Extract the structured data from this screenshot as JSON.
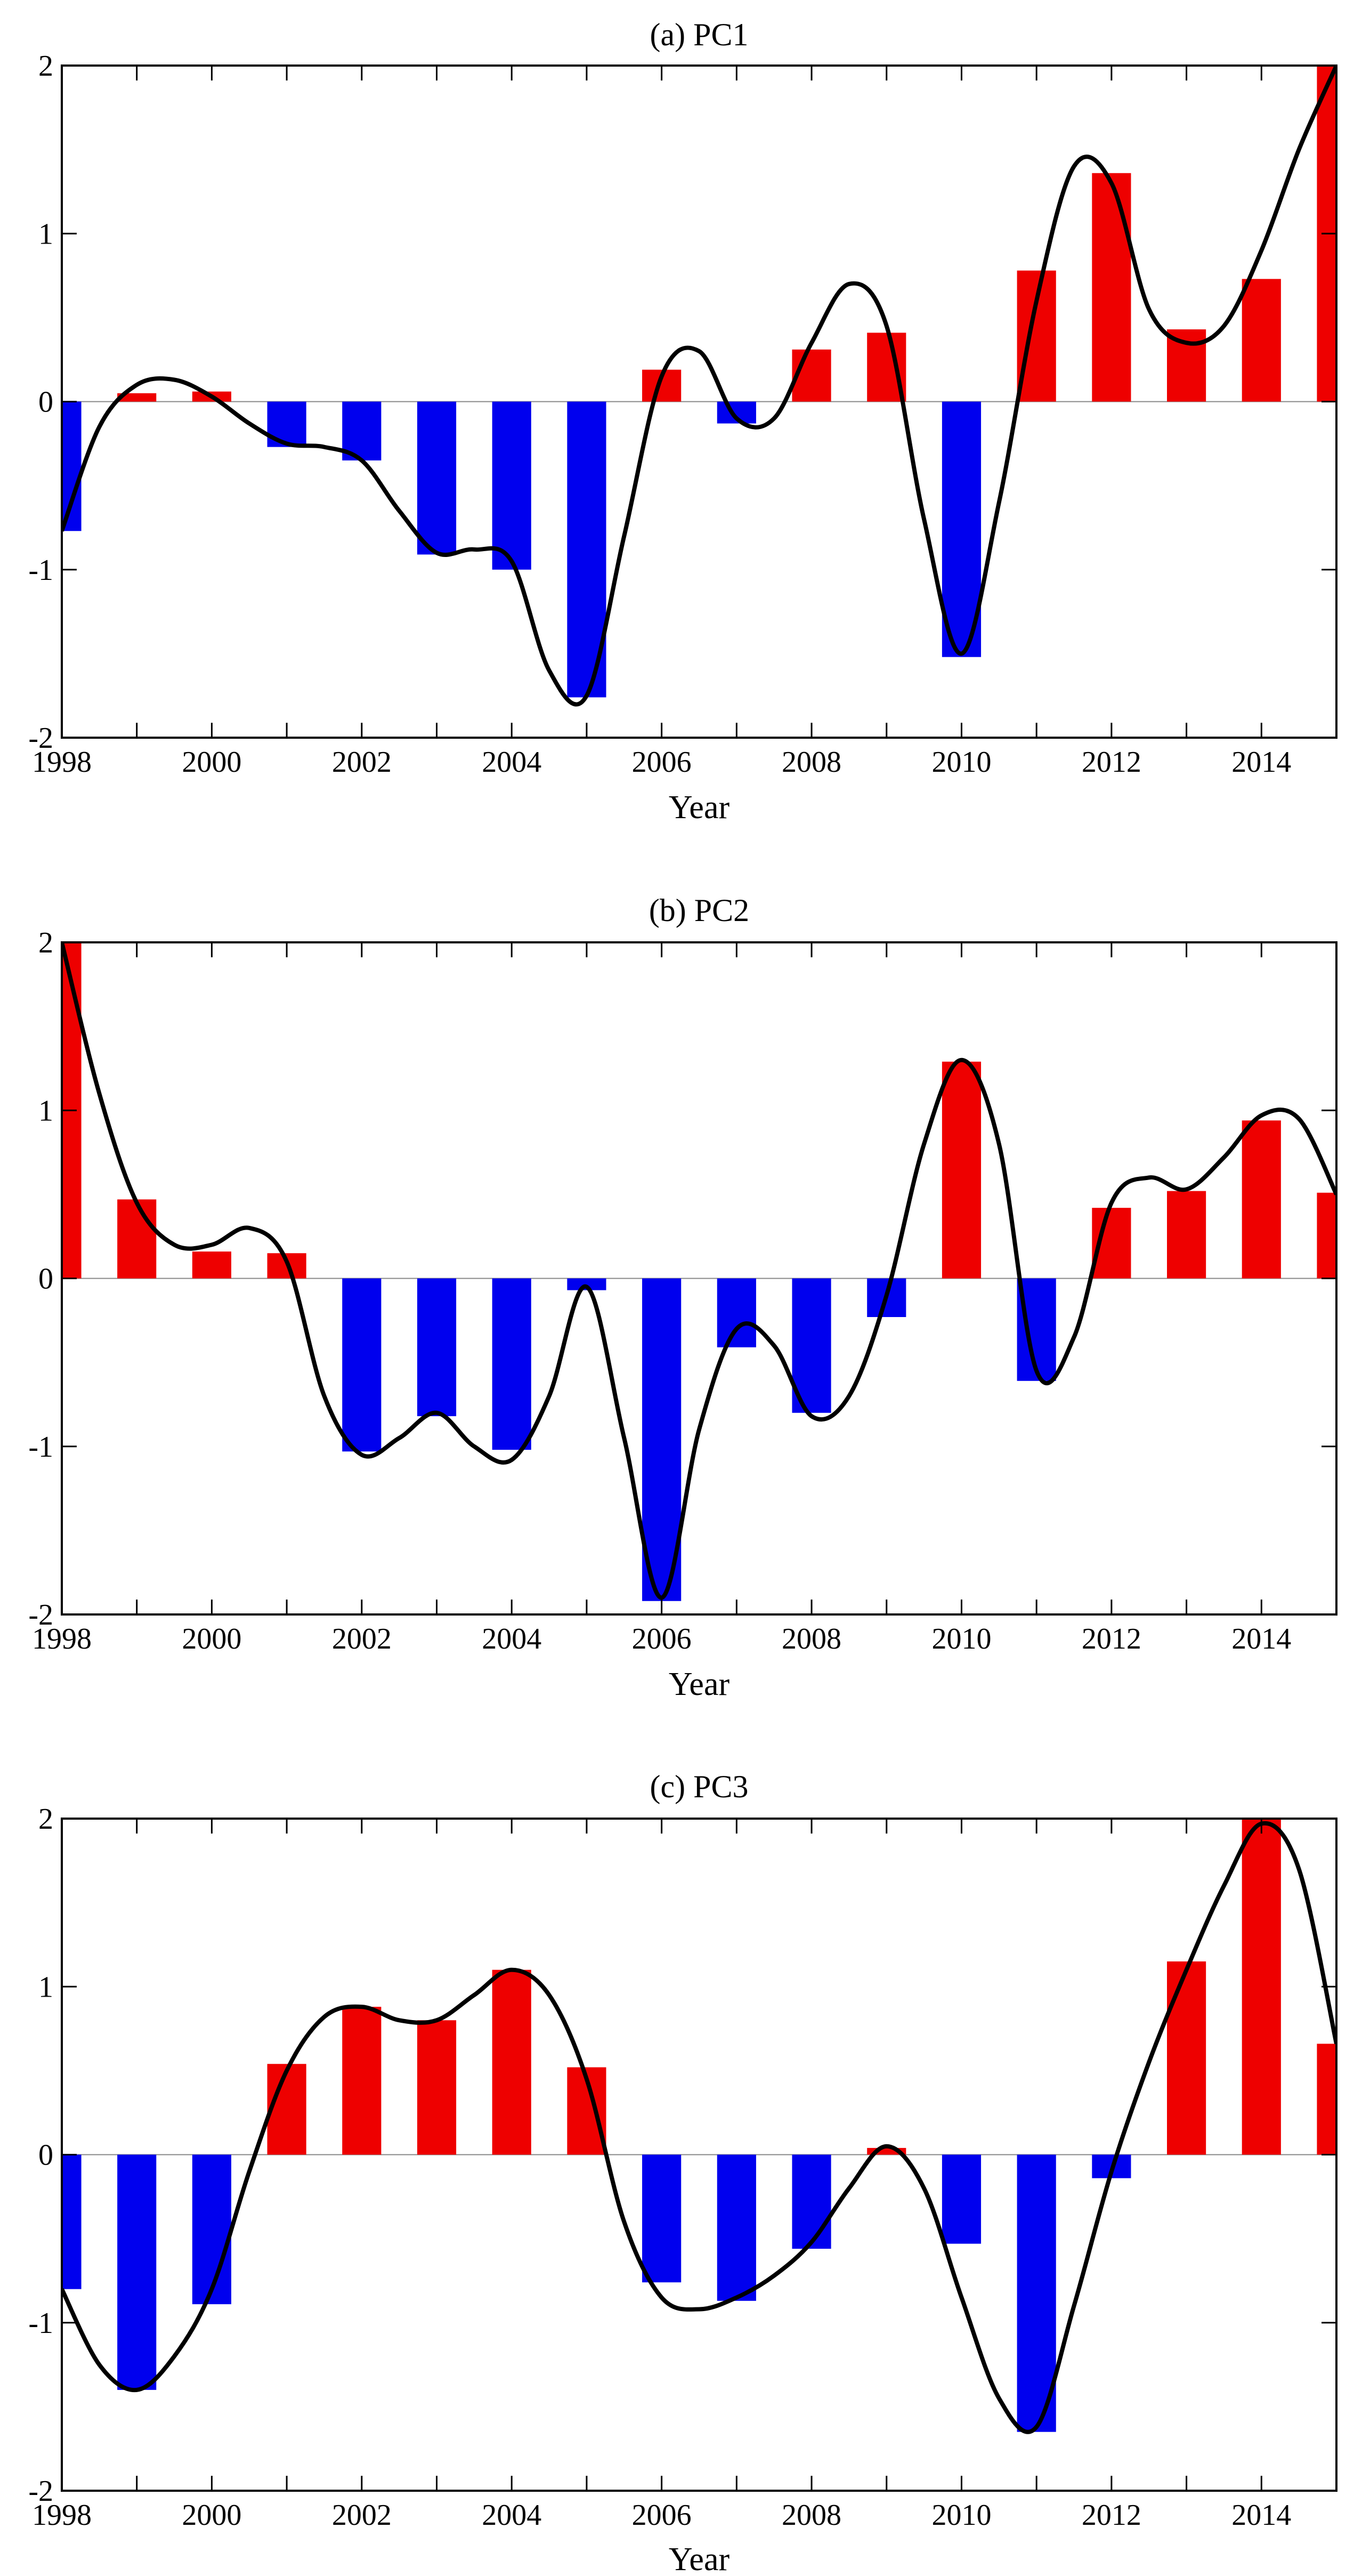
{
  "chart_data": [
    {
      "type": "bar",
      "title": "(a) PC1",
      "xlabel": "Year",
      "ylabel": "",
      "xlim": [
        1998,
        2015
      ],
      "ylim": [
        -2,
        2
      ],
      "yticks": [
        -2,
        -1,
        0,
        1,
        2
      ],
      "xticks": [
        1998,
        2000,
        2002,
        2004,
        2006,
        2008,
        2010,
        2012,
        2014
      ],
      "bars": {
        "x": [
          1998,
          1999,
          2000,
          2001,
          2002,
          2003,
          2004,
          2005,
          2006,
          2007,
          2008,
          2009,
          2010,
          2011,
          2012,
          2013,
          2014,
          2015
        ],
        "values": [
          -0.77,
          0.05,
          0.06,
          -0.27,
          -0.35,
          -0.91,
          -1.0,
          -1.76,
          0.19,
          -0.13,
          0.31,
          0.41,
          -1.52,
          0.78,
          1.36,
          0.43,
          0.73,
          2.0
        ]
      },
      "curve": {
        "x": [
          1998,
          1998.5,
          1999,
          1999.5,
          2000,
          2000.5,
          2001,
          2001.5,
          2002,
          2002.5,
          2003,
          2003.5,
          2004,
          2004.5,
          2005,
          2005.5,
          2006,
          2006.5,
          2007,
          2007.5,
          2008,
          2008.5,
          2009,
          2009.5,
          2010,
          2010.5,
          2011,
          2011.5,
          2012,
          2012.5,
          2013,
          2013.5,
          2014,
          2014.5,
          2015
        ],
        "y": [
          -0.77,
          -0.15,
          0.1,
          0.13,
          0.03,
          -0.13,
          -0.25,
          -0.27,
          -0.35,
          -0.65,
          -0.9,
          -0.88,
          -0.95,
          -1.6,
          -1.75,
          -0.8,
          0.15,
          0.3,
          -0.1,
          -0.1,
          0.35,
          0.7,
          0.45,
          -0.7,
          -1.5,
          -0.6,
          0.6,
          1.4,
          1.3,
          0.55,
          0.35,
          0.45,
          0.9,
          1.5,
          2.0
        ]
      },
      "positive_color": "#ee0000",
      "negative_color": "#0000ee"
    },
    {
      "type": "bar",
      "title": "(b) PC2",
      "xlabel": "Year",
      "ylabel": "",
      "xlim": [
        1998,
        2015
      ],
      "ylim": [
        -2,
        2
      ],
      "yticks": [
        -2,
        -1,
        0,
        1,
        2
      ],
      "xticks": [
        1998,
        2000,
        2002,
        2004,
        2006,
        2008,
        2010,
        2012,
        2014
      ],
      "bars": {
        "x": [
          1998,
          1999,
          2000,
          2001,
          2002,
          2003,
          2004,
          2005,
          2006,
          2007,
          2008,
          2009,
          2010,
          2011,
          2012,
          2013,
          2014,
          2015
        ],
        "values": [
          2.0,
          0.47,
          0.16,
          0.15,
          -1.03,
          -0.82,
          -1.02,
          -0.07,
          -1.92,
          -0.41,
          -0.8,
          -0.23,
          1.29,
          -0.61,
          0.42,
          0.52,
          0.94,
          0.51
        ]
      },
      "curve": {
        "x": [
          1998,
          1998.5,
          1999,
          1999.5,
          2000,
          2000.5,
          2001,
          2001.5,
          2002,
          2002.5,
          2003,
          2003.5,
          2004,
          2004.5,
          2005,
          2005.5,
          2006,
          2006.5,
          2007,
          2007.5,
          2008,
          2008.5,
          2009,
          2009.5,
          2010,
          2010.5,
          2011,
          2011.5,
          2012,
          2012.5,
          2013,
          2013.5,
          2014,
          2014.5,
          2015
        ],
        "y": [
          2.0,
          1.1,
          0.45,
          0.2,
          0.2,
          0.3,
          0.1,
          -0.7,
          -1.05,
          -0.95,
          -0.8,
          -1.0,
          -1.08,
          -0.7,
          -0.05,
          -0.95,
          -1.9,
          -0.9,
          -0.3,
          -0.4,
          -0.82,
          -0.7,
          -0.1,
          0.8,
          1.3,
          0.8,
          -0.55,
          -0.35,
          0.45,
          0.6,
          0.53,
          0.72,
          0.97,
          0.95,
          0.5
        ]
      },
      "positive_color": "#ee0000",
      "negative_color": "#0000ee"
    },
    {
      "type": "bar",
      "title": "(c) PC3",
      "xlabel": "Year",
      "ylabel": "",
      "xlim": [
        1998,
        2015
      ],
      "ylim": [
        -2,
        2
      ],
      "yticks": [
        -2,
        -1,
        0,
        1,
        2
      ],
      "xticks": [
        1998,
        2000,
        2002,
        2004,
        2006,
        2008,
        2010,
        2012,
        2014
      ],
      "bars": {
        "x": [
          1998,
          1999,
          2000,
          2001,
          2002,
          2003,
          2004,
          2005,
          2006,
          2007,
          2008,
          2009,
          2010,
          2011,
          2012,
          2013,
          2014,
          2015
        ],
        "values": [
          -0.8,
          -1.4,
          -0.89,
          0.54,
          0.88,
          0.8,
          1.1,
          0.52,
          -0.76,
          -0.87,
          -0.56,
          0.04,
          -0.53,
          -1.65,
          -0.14,
          1.15,
          2.0,
          0.66
        ]
      },
      "curve": {
        "x": [
          1998,
          1998.5,
          1999,
          1999.5,
          2000,
          2000.5,
          2001,
          2001.5,
          2002,
          2002.5,
          2003,
          2003.5,
          2004,
          2004.5,
          2005,
          2005.5,
          2006,
          2006.5,
          2007,
          2007.5,
          2008,
          2008.5,
          2009,
          2009.5,
          2010,
          2010.5,
          2011,
          2011.5,
          2012,
          2012.5,
          2013,
          2013.5,
          2014,
          2014.5,
          2015
        ],
        "y": [
          -0.8,
          -1.25,
          -1.4,
          -1.2,
          -0.8,
          -0.1,
          0.5,
          0.82,
          0.88,
          0.8,
          0.8,
          0.95,
          1.1,
          0.95,
          0.45,
          -0.4,
          -0.85,
          -0.92,
          -0.85,
          -0.72,
          -0.52,
          -0.2,
          0.05,
          -0.2,
          -0.85,
          -1.45,
          -1.62,
          -0.9,
          -0.1,
          0.55,
          1.1,
          1.6,
          1.97,
          1.7,
          0.66
        ]
      },
      "positive_color": "#ee0000",
      "negative_color": "#0000ee"
    }
  ]
}
